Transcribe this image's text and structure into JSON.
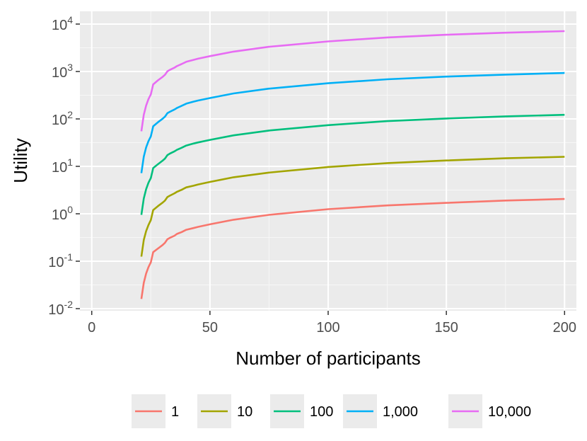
{
  "chart_data": {
    "type": "line",
    "title": "",
    "xlabel": "Number of participants",
    "ylabel": "Utility",
    "xlim": [
      -5,
      205
    ],
    "ylim_log10": [
      -2,
      4
    ],
    "y_scale": "log10",
    "x_ticks": [
      0,
      50,
      100,
      150,
      200
    ],
    "x_tick_labels": [
      "0",
      "50",
      "100",
      "150",
      "200"
    ],
    "y_ticks": [
      0.01,
      0.1,
      1,
      10,
      100,
      1000,
      10000
    ],
    "y_tick_labels": [
      {
        "base": "10",
        "exp": "-2"
      },
      {
        "base": "10",
        "exp": "-1"
      },
      {
        "base": "10",
        "exp": "0"
      },
      {
        "base": "10",
        "exp": "1"
      },
      {
        "base": "10",
        "exp": "2"
      },
      {
        "base": "10",
        "exp": "3"
      },
      {
        "base": "10",
        "exp": "4"
      }
    ],
    "grid": true,
    "legend_position": "bottom",
    "x": [
      21,
      22,
      23,
      24,
      25,
      26,
      28,
      30,
      31,
      32,
      33,
      35,
      36,
      38,
      40,
      43,
      45,
      50,
      60,
      75,
      100,
      125,
      150,
      175,
      200
    ],
    "series": [
      {
        "name": "1",
        "color": "#F8766D",
        "values": [
          0.016,
          0.035,
          0.055,
          0.075,
          0.095,
          0.155,
          0.185,
          0.22,
          0.245,
          0.29,
          0.31,
          0.345,
          0.375,
          0.41,
          0.46,
          0.5,
          0.53,
          0.6,
          0.75,
          0.95,
          1.25,
          1.5,
          1.7,
          1.9,
          2.05
        ]
      },
      {
        "name": "10",
        "color": "#A3A500",
        "values": [
          0.125,
          0.28,
          0.43,
          0.58,
          0.74,
          1.2,
          1.45,
          1.72,
          1.9,
          2.25,
          2.4,
          2.7,
          2.9,
          3.2,
          3.6,
          3.9,
          4.15,
          4.7,
          5.9,
          7.4,
          9.7,
          11.7,
          13.3,
          14.8,
          15.9
        ]
      },
      {
        "name": "100",
        "color": "#00BF7D",
        "values": [
          0.95,
          2.1,
          3.3,
          4.5,
          5.7,
          9.2,
          11.1,
          13.2,
          14.6,
          17.3,
          18.5,
          20.7,
          22.3,
          24.6,
          27.5,
          30.2,
          32,
          36.2,
          45,
          57,
          74,
          90,
          102,
          113,
          122
        ]
      },
      {
        "name": "1,000",
        "color": "#00B0F6",
        "values": [
          7.2,
          16,
          25,
          34,
          43,
          70,
          85,
          101,
          112,
          132,
          141,
          158,
          170,
          188,
          210,
          231,
          244,
          276,
          345,
          435,
          565,
          685,
          780,
          860,
          930
        ]
      },
      {
        "name": "10,000",
        "color": "#E76BF3",
        "values": [
          55,
          122,
          191,
          261,
          330,
          535,
          650,
          770,
          855,
          1010,
          1080,
          1205,
          1300,
          1435,
          1600,
          1760,
          1860,
          2110,
          2630,
          3320,
          4310,
          5230,
          5960,
          6570,
          7100
        ]
      }
    ]
  }
}
